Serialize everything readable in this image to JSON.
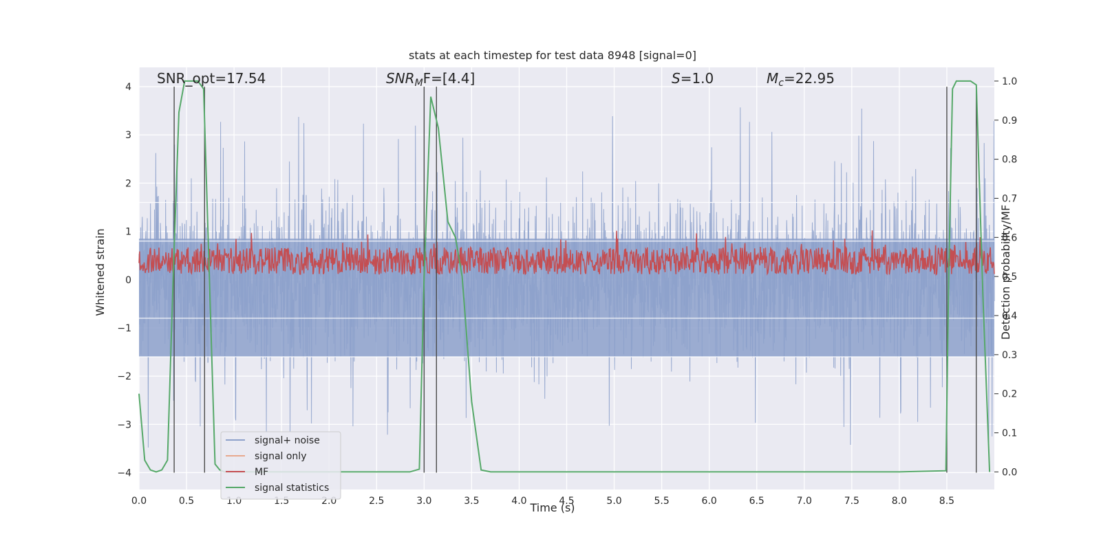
{
  "colors": {
    "signal_noise": "#8da1cb",
    "signal_only": "#e8a88d",
    "mf": "#c44e52",
    "signal_statistics": "#55a868",
    "vlines": "#4a4a4a",
    "axes_bg": "#eaeaf2",
    "grid": "#ffffff"
  },
  "chart_data": {
    "type": "line",
    "title": "stats at each timestep for test data 8948 [signal=0]",
    "xlabel": "Time (s)",
    "ylabel_left": "Whitened strain",
    "ylabel_right": "Detection probability/MF",
    "xlim": [
      0.0,
      9.0
    ],
    "ylim_left": [
      -4.35,
      4.4
    ],
    "ylim_right": [
      -0.045,
      1.035
    ],
    "x_ticks": [
      "0.0",
      "0.5",
      "1.0",
      "1.5",
      "2.0",
      "2.5",
      "3.0",
      "3.5",
      "4.0",
      "4.5",
      "5.0",
      "5.5",
      "6.0",
      "6.5",
      "7.0",
      "7.5",
      "8.0",
      "8.5"
    ],
    "y_ticks_left": [
      "4",
      "3",
      "2",
      "1",
      "0",
      "−1",
      "−2",
      "−3",
      "−4"
    ],
    "y_ticks_left_values": [
      4,
      3,
      2,
      1,
      0,
      -1,
      -2,
      -3,
      -4
    ],
    "y_ticks_right": [
      "1.0",
      "0.9",
      "0.8",
      "0.7",
      "0.6",
      "0.5",
      "0.4",
      "0.3",
      "0.2",
      "0.1",
      "0.0"
    ],
    "y_ticks_right_values": [
      1.0,
      0.9,
      0.8,
      0.7,
      0.6,
      0.5,
      0.4,
      0.3,
      0.2,
      0.1,
      0.0
    ],
    "grid": true,
    "legend_position": "lower-left",
    "annotations": {
      "snr_opt": "SNR_opt=17.54",
      "snr_mf_prefix": "SNR",
      "snr_mf_sub": "M",
      "snr_mf_suffix": "F=[4.4]",
      "s_prefix": "S",
      "s_suffix": "=1.0",
      "mc_prefix": "M",
      "mc_sub": "c",
      "mc_suffix": "=22.95"
    },
    "vertical_lines_x": [
      0.37,
      0.69,
      3.0,
      3.13,
      8.5,
      8.81
    ],
    "series": [
      {
        "name": "signal+ noise",
        "axis": "left",
        "style": "noise",
        "rms": 0.8,
        "max_amplitude": 3.6
      },
      {
        "name": "signal only",
        "axis": "left",
        "values": []
      },
      {
        "name": "MF",
        "axis": "right",
        "style": "noise",
        "mean": 0.54,
        "range": [
          0.5,
          0.63
        ]
      },
      {
        "name": "signal statistics",
        "axis": "right",
        "x": [
          0.0,
          0.06,
          0.12,
          0.18,
          0.24,
          0.3,
          0.36,
          0.42,
          0.48,
          0.55,
          0.62,
          0.68,
          0.74,
          0.8,
          0.85,
          0.9,
          1.0,
          1.5,
          2.0,
          2.5,
          2.85,
          2.95,
          3.0,
          3.07,
          3.15,
          3.25,
          3.33,
          3.4,
          3.5,
          3.6,
          3.7,
          4.0,
          5.0,
          6.0,
          7.0,
          8.0,
          8.49,
          8.52,
          8.56,
          8.6,
          8.65,
          8.75,
          8.81,
          8.88,
          8.95
        ],
        "values": [
          0.2,
          0.03,
          0.005,
          0.0,
          0.005,
          0.03,
          0.5,
          0.92,
          1.0,
          1.0,
          1.0,
          0.98,
          0.5,
          0.02,
          0.005,
          0.0,
          0.0,
          0.0,
          0.0,
          0.0,
          0.0,
          0.007,
          0.5,
          0.96,
          0.88,
          0.64,
          0.6,
          0.5,
          0.18,
          0.005,
          0.0,
          0.0,
          0.0,
          0.0,
          0.0,
          0.0,
          0.003,
          0.5,
          0.98,
          1.0,
          1.0,
          1.0,
          0.99,
          0.45,
          0.0
        ]
      }
    ]
  }
}
